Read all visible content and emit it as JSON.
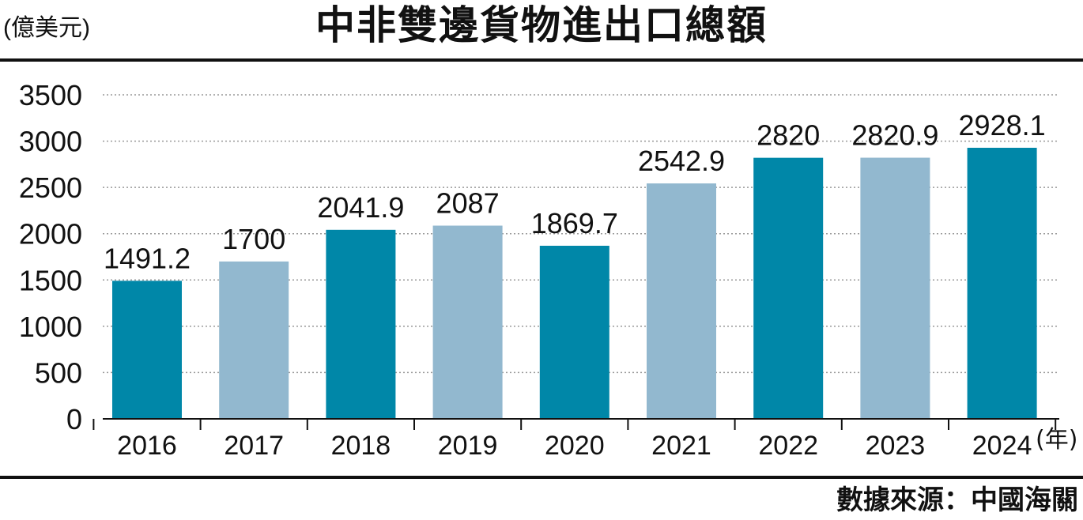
{
  "header": {
    "unit": "(億美元)",
    "title": "中非雙邊貨物進出口總額"
  },
  "footer": {
    "source": "數據來源：中國海關"
  },
  "colors": {
    "dark": "#0087a8",
    "light": "#92b8cf",
    "grid": "#999999",
    "axis": "#111111"
  },
  "chart_data": {
    "type": "bar",
    "title": "中非雙邊貨物進出口總額",
    "ylabel": "(億美元)",
    "xlabel": "(年)",
    "categories": [
      "2016",
      "2017",
      "2018",
      "2019",
      "2020",
      "2021",
      "2022",
      "2023",
      "2024"
    ],
    "values": [
      1491.2,
      1700,
      2041.9,
      2087,
      1869.7,
      2542.9,
      2820,
      2820.9,
      2928.1
    ],
    "value_labels": [
      "1491.2",
      "1700",
      "2041.9",
      "2087",
      "1869.7",
      "2542.9",
      "2820",
      "2820.9",
      "2928.1"
    ],
    "bar_shades": [
      "dark",
      "light",
      "dark",
      "light",
      "dark",
      "light",
      "dark",
      "light",
      "dark"
    ],
    "yticks": [
      "0",
      "500",
      "1000",
      "1500",
      "2000",
      "2500",
      "3000",
      "3500"
    ],
    "ylim": [
      0,
      3500
    ],
    "grid": "dotted horizontal"
  }
}
